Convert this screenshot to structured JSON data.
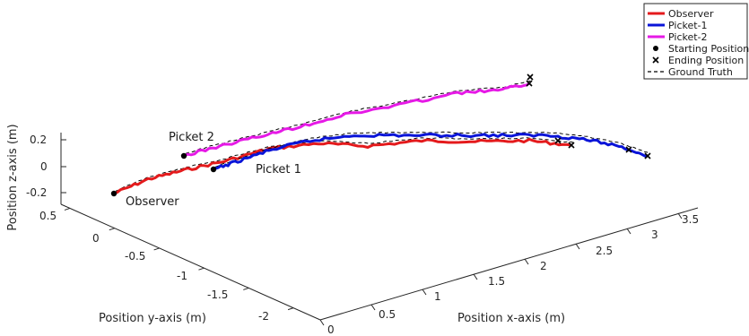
{
  "chart_data": {
    "type": "line",
    "projection": "3d",
    "xlabel": "Position x-axis (m)",
    "ylabel": "Position y-axis (m)",
    "zlabel": "Position z-axis (m)",
    "xlim": [
      0,
      3.7
    ],
    "ylim": [
      -2.3,
      0.6
    ],
    "zlim": [
      -0.25,
      0.25
    ],
    "xticks": [
      0,
      0.5,
      1,
      1.5,
      2,
      2.5,
      3,
      3.5
    ],
    "xtick_labels": [
      "0",
      "0.5",
      "1",
      "1.5",
      "2",
      "2.5",
      "3",
      "3.5"
    ],
    "yticks": [
      0.5,
      0,
      -0.5,
      -1,
      -1.5,
      -2
    ],
    "ytick_labels": [
      "0.5",
      "0",
      "-0.5",
      "-1",
      "-1.5",
      "-2"
    ],
    "zticks": [
      0.2,
      0,
      -0.2
    ],
    "ztick_labels": [
      "0.2",
      "0",
      "-0.2"
    ],
    "grid": false,
    "legend_position": "top-right",
    "legend": [
      {
        "label": "Observer",
        "kind": "line",
        "color": "#e41a1c"
      },
      {
        "label": "Picket-1",
        "kind": "line",
        "color": "#0a14d8"
      },
      {
        "label": "Picket-2",
        "kind": "line",
        "color": "#e619e6"
      },
      {
        "label": "Starting Position",
        "kind": "dot",
        "color": "#000000"
      },
      {
        "label": "Ending Position",
        "kind": "cross",
        "color": "#000000"
      },
      {
        "label": "Ground Truth",
        "kind": "dashed",
        "color": "#000000"
      }
    ],
    "annotations": [
      "Picket 2",
      "Picket 1",
      "Observer"
    ],
    "series": [
      {
        "name": "Observer",
        "color": "#e41a1c",
        "x": [
          0.0,
          0.3,
          0.6,
          0.9,
          1.2,
          1.5,
          1.8,
          2.1,
          2.4,
          2.7,
          3.0
        ],
        "y": [
          0.0,
          -0.1,
          -0.22,
          -0.35,
          -0.5,
          -0.65,
          -0.8,
          -0.95,
          -1.1,
          -1.25,
          -1.4
        ],
        "z": [
          0.0,
          0.02,
          0.04,
          0.07,
          0.1,
          0.12,
          0.12,
          0.13,
          0.12,
          0.12,
          0.11
        ]
      },
      {
        "name": "Picket-1",
        "color": "#0a14d8",
        "x": [
          0.2,
          0.5,
          0.8,
          1.1,
          1.4,
          1.7,
          2.0,
          2.3,
          2.6,
          2.9,
          3.2,
          3.5
        ],
        "y": [
          -0.55,
          -0.62,
          -0.7,
          -0.78,
          -0.87,
          -0.96,
          -1.05,
          -1.14,
          -1.23,
          -1.32,
          -1.41,
          -1.5
        ],
        "z": [
          0.0,
          0.07,
          0.12,
          0.15,
          0.15,
          0.15,
          0.15,
          0.15,
          0.14,
          0.13,
          0.1,
          0.05
        ]
      },
      {
        "name": "Picket-2",
        "color": "#e619e6",
        "x": [
          0.1,
          0.5,
          0.9,
          1.3,
          1.7,
          2.1,
          2.5,
          2.9,
          3.2
        ],
        "y": [
          -0.4,
          -0.5,
          -0.6,
          -0.7,
          -0.8,
          -0.9,
          -1.0,
          -1.1,
          -1.18
        ],
        "z": [
          0.1,
          0.17,
          0.25,
          0.32,
          0.39,
          0.45,
          0.5,
          0.55,
          0.59
        ]
      }
    ]
  }
}
